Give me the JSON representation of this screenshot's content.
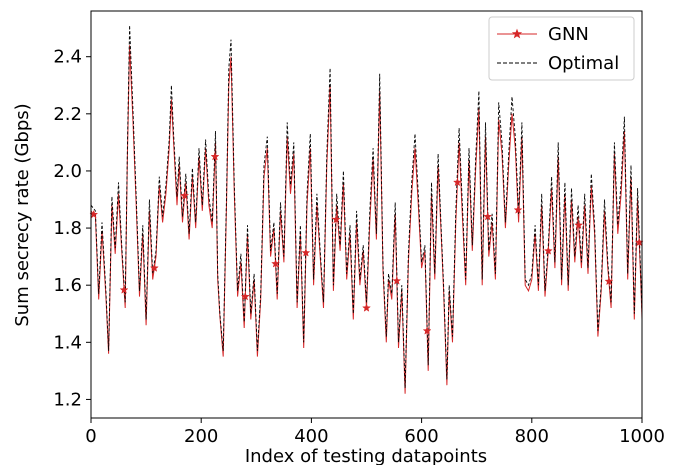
{
  "chart_data": {
    "type": "line",
    "xlabel": "Index of testing datapoints",
    "ylabel": "Sum secrecy rate (Gbps)",
    "xlim": [
      0,
      1000
    ],
    "ylim": [
      1.135,
      2.56
    ],
    "xticks": [
      0,
      200,
      400,
      600,
      800,
      1000
    ],
    "yticks": [
      1.2,
      1.4,
      1.6,
      1.8,
      2.0,
      2.2,
      2.4
    ],
    "xtick_labels": [
      "0",
      "200",
      "400",
      "600",
      "800",
      "1000"
    ],
    "ytick_labels": [
      "1.2",
      "1.4",
      "1.6",
      "1.8",
      "2.0",
      "2.2",
      "2.4"
    ],
    "grid": false,
    "legend_position": "top-right",
    "marker_every": 55,
    "series": [
      {
        "name": "GNN",
        "color": "#d62728",
        "style": "solid",
        "marker": "star",
        "x": [
          0,
          8,
          14,
          20,
          27,
          32,
          38,
          44,
          50,
          56,
          62,
          66,
          70,
          76,
          82,
          88,
          94,
          100,
          106,
          112,
          118,
          124,
          130,
          136,
          142,
          146,
          150,
          156,
          160,
          166,
          172,
          178,
          184,
          190,
          196,
          202,
          208,
          214,
          220,
          226,
          230,
          234,
          240,
          246,
          250,
          254,
          260,
          266,
          272,
          278,
          284,
          290,
          296,
          302,
          308,
          314,
          320,
          326,
          332,
          338,
          344,
          350,
          356,
          362,
          368,
          374,
          380,
          386,
          392,
          398,
          404,
          410,
          416,
          422,
          428,
          434,
          440,
          446,
          452,
          458,
          464,
          470,
          476,
          482,
          488,
          494,
          500,
          506,
          512,
          518,
          524,
          530,
          536,
          540,
          546,
          552,
          558,
          564,
          570,
          576,
          582,
          588,
          594,
          600,
          606,
          612,
          618,
          624,
          630,
          636,
          640,
          646,
          650,
          656,
          662,
          668,
          674,
          680,
          686,
          692,
          698,
          704,
          710,
          716,
          722,
          728,
          734,
          740,
          746,
          752,
          758,
          764,
          770,
          776,
          782,
          788,
          794,
          800,
          806,
          812,
          818,
          824,
          830,
          836,
          842,
          848,
          854,
          860,
          866,
          872,
          878,
          884,
          890,
          896,
          902,
          908,
          914,
          920,
          926,
          932,
          938,
          944,
          950,
          956,
          962,
          968,
          974,
          980,
          986,
          992,
          998,
          1000
        ],
        "y": [
          1.86,
          1.84,
          1.55,
          1.79,
          1.56,
          1.36,
          1.88,
          1.71,
          1.92,
          1.71,
          1.52,
          2.05,
          2.44,
          2.18,
          1.88,
          1.56,
          1.78,
          1.46,
          1.86,
          1.62,
          1.7,
          1.95,
          1.82,
          1.92,
          2.08,
          2.25,
          2.1,
          1.88,
          2.02,
          1.82,
          1.96,
          1.76,
          1.98,
          1.8,
          2.05,
          1.86,
          2.08,
          1.88,
          1.8,
          2.1,
          1.62,
          1.49,
          1.35,
          1.88,
          2.3,
          2.4,
          1.92,
          1.56,
          1.68,
          1.45,
          1.78,
          1.48,
          1.62,
          1.35,
          1.55,
          1.98,
          2.08,
          1.7,
          1.8,
          1.55,
          1.86,
          1.68,
          2.12,
          1.92,
          2.06,
          1.52,
          1.78,
          1.38,
          1.88,
          2.08,
          1.6,
          1.88,
          1.7,
          1.52,
          2.02,
          2.3,
          1.58,
          1.88,
          1.72,
          1.96,
          1.62,
          1.78,
          1.48,
          1.82,
          1.6,
          1.72,
          1.52,
          1.82,
          2.04,
          1.76,
          2.28,
          1.65,
          1.4,
          1.62,
          1.55,
          1.85,
          1.38,
          1.58,
          1.22,
          1.68,
          1.92,
          2.08,
          1.88,
          1.66,
          1.72,
          1.3,
          1.92,
          1.62,
          2.02,
          1.76,
          1.58,
          1.25,
          1.58,
          1.4,
          1.82,
          2.1,
          1.84,
          1.6,
          2.04,
          1.72,
          2.0,
          2.22,
          1.6,
          2.12,
          1.7,
          1.82,
          1.62,
          2.18,
          2.06,
          1.8,
          2.02,
          2.2,
          2.08,
          1.82,
          2.12,
          1.6,
          1.58,
          1.62,
          1.78,
          1.58,
          1.88,
          1.56,
          1.72,
          1.94,
          1.66,
          2.05,
          1.6,
          1.92,
          1.58,
          1.9,
          1.68,
          1.84,
          1.66,
          1.88,
          1.64,
          1.95,
          1.78,
          1.42,
          1.58,
          1.86,
          1.66,
          1.52,
          2.06,
          1.78,
          1.92,
          2.14,
          1.62,
          1.98,
          1.48,
          1.9,
          1.6,
          1.48
        ]
      },
      {
        "name": "Optimal",
        "color": "#000000",
        "style": "dashed",
        "x": [
          0,
          8,
          14,
          20,
          27,
          32,
          38,
          44,
          50,
          56,
          62,
          66,
          70,
          76,
          82,
          88,
          94,
          100,
          106,
          112,
          118,
          124,
          130,
          136,
          142,
          146,
          150,
          156,
          160,
          166,
          172,
          178,
          184,
          190,
          196,
          202,
          208,
          214,
          220,
          226,
          230,
          234,
          240,
          246,
          250,
          254,
          260,
          266,
          272,
          278,
          284,
          290,
          296,
          302,
          308,
          314,
          320,
          326,
          332,
          338,
          344,
          350,
          356,
          362,
          368,
          374,
          380,
          386,
          392,
          398,
          404,
          410,
          416,
          422,
          428,
          434,
          440,
          446,
          452,
          458,
          464,
          470,
          476,
          482,
          488,
          494,
          500,
          506,
          512,
          518,
          524,
          530,
          536,
          540,
          546,
          552,
          558,
          564,
          570,
          576,
          582,
          588,
          594,
          600,
          606,
          612,
          618,
          624,
          630,
          636,
          640,
          646,
          650,
          656,
          662,
          668,
          674,
          680,
          686,
          692,
          698,
          704,
          710,
          716,
          722,
          728,
          734,
          740,
          746,
          752,
          758,
          764,
          770,
          776,
          782,
          788,
          794,
          800,
          806,
          812,
          818,
          824,
          830,
          836,
          842,
          848,
          854,
          860,
          866,
          872,
          878,
          884,
          890,
          896,
          902,
          908,
          914,
          920,
          926,
          932,
          938,
          944,
          950,
          956,
          962,
          968,
          974,
          980,
          986,
          992,
          998,
          1000
        ],
        "y": [
          1.88,
          1.86,
          1.57,
          1.82,
          1.58,
          1.37,
          1.91,
          1.73,
          1.96,
          1.73,
          1.54,
          2.08,
          2.51,
          2.22,
          1.91,
          1.58,
          1.81,
          1.48,
          1.9,
          1.64,
          1.72,
          1.98,
          1.84,
          1.95,
          2.11,
          2.3,
          2.13,
          1.91,
          2.05,
          1.84,
          1.99,
          1.78,
          2.01,
          1.82,
          2.08,
          1.88,
          2.11,
          1.91,
          1.82,
          2.14,
          1.64,
          1.5,
          1.37,
          1.91,
          2.36,
          2.46,
          1.95,
          1.58,
          1.71,
          1.47,
          1.81,
          1.5,
          1.64,
          1.37,
          1.57,
          2.02,
          2.12,
          1.72,
          1.82,
          1.57,
          1.89,
          1.7,
          2.17,
          1.95,
          2.1,
          1.54,
          1.81,
          1.4,
          1.92,
          2.13,
          1.62,
          1.92,
          1.72,
          1.54,
          2.06,
          2.36,
          1.6,
          1.92,
          1.74,
          2.0,
          1.64,
          1.81,
          1.5,
          1.86,
          1.62,
          1.74,
          1.54,
          1.86,
          2.08,
          1.78,
          2.34,
          1.67,
          1.42,
          1.64,
          1.57,
          1.89,
          1.4,
          1.6,
          1.24,
          1.71,
          1.96,
          2.13,
          1.92,
          1.68,
          1.74,
          1.32,
          1.96,
          1.64,
          2.06,
          1.78,
          1.6,
          1.27,
          1.6,
          1.42,
          1.86,
          2.15,
          1.88,
          1.62,
          2.08,
          1.74,
          2.04,
          2.28,
          1.62,
          2.17,
          1.72,
          1.85,
          1.64,
          2.24,
          2.1,
          1.82,
          2.06,
          2.26,
          2.12,
          1.85,
          2.17,
          1.62,
          1.6,
          1.64,
          1.81,
          1.6,
          1.92,
          1.58,
          1.74,
          1.98,
          1.68,
          2.1,
          1.62,
          1.96,
          1.6,
          1.94,
          1.7,
          1.88,
          1.68,
          1.92,
          1.66,
          1.99,
          1.81,
          1.44,
          1.6,
          1.9,
          1.68,
          1.54,
          2.1,
          1.81,
          1.96,
          2.19,
          1.64,
          2.02,
          1.5,
          1.94,
          1.62,
          1.5
        ]
      }
    ]
  }
}
